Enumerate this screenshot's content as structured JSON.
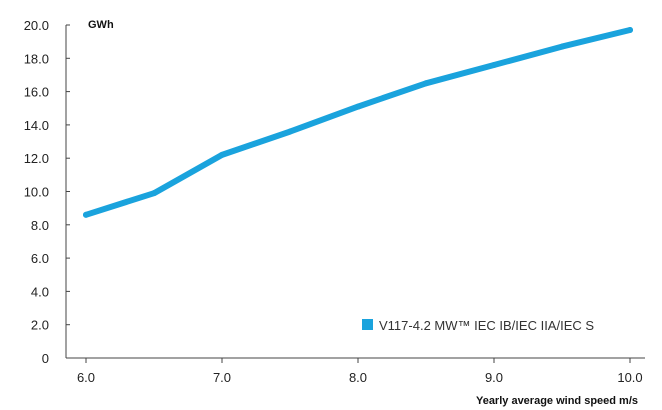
{
  "chart_data": {
    "type": "line",
    "ylabel": "GWh",
    "xlabel": "Yearly average wind speed m/s",
    "xlim": [
      6.0,
      10.0
    ],
    "ylim": [
      0,
      20.0
    ],
    "x_ticks": [
      "6.0",
      "7.0",
      "8.0",
      "9.0",
      "10.0"
    ],
    "y_ticks": [
      "0",
      "2.0",
      "4.0",
      "6.0",
      "8.0",
      "10.0",
      "12.0",
      "14.0",
      "16.0",
      "18.0",
      "20.0"
    ],
    "grid": false,
    "legend_position": "bottom-right",
    "series": [
      {
        "name": "V117-4.2 MW™ IEC IB/IEC IIA/IEC S",
        "color": "#1aa3dd",
        "x": [
          6.0,
          6.5,
          7.0,
          7.5,
          8.0,
          8.5,
          9.0,
          9.5,
          10.0
        ],
        "y": [
          8.6,
          9.9,
          12.2,
          13.6,
          15.1,
          16.5,
          17.6,
          18.7,
          19.7
        ]
      }
    ]
  }
}
